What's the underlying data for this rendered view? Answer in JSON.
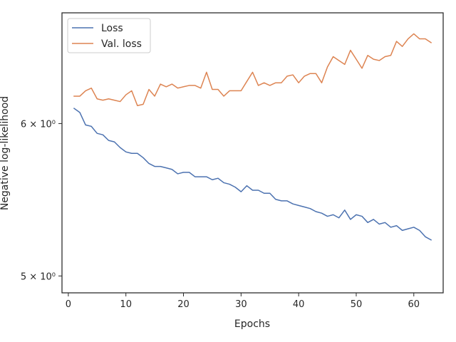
{
  "chart_data": {
    "type": "line",
    "xlabel": "Epochs",
    "ylabel": "Negative log-likelihood",
    "yscale": "log",
    "xlim": [
      -1.1,
      65.1
    ],
    "ylim": [
      4.9,
      6.85
    ],
    "xticks": [
      0,
      10,
      20,
      30,
      40,
      50,
      60
    ],
    "xtick_labels": [
      "0",
      "10",
      "20",
      "30",
      "40",
      "50",
      "60"
    ],
    "yticks": [
      5,
      6
    ],
    "ytick_labels": [
      "5 × 10⁰",
      "6 × 10⁰"
    ],
    "grid": false,
    "legend_position": "upper left",
    "x": [
      1,
      2,
      3,
      4,
      5,
      6,
      7,
      8,
      9,
      10,
      11,
      12,
      13,
      14,
      15,
      16,
      17,
      18,
      19,
      20,
      21,
      22,
      23,
      24,
      25,
      26,
      27,
      28,
      29,
      30,
      31,
      32,
      33,
      34,
      35,
      36,
      37,
      38,
      39,
      40,
      41,
      42,
      43,
      44,
      45,
      46,
      47,
      48,
      49,
      50,
      51,
      52,
      53,
      54,
      55,
      56,
      57,
      58,
      59,
      60,
      61,
      62,
      63
    ],
    "series": [
      {
        "name": "Loss",
        "color": "#4c72b0",
        "values": [
          6.11,
          6.08,
          5.99,
          5.98,
          5.93,
          5.92,
          5.88,
          5.87,
          5.83,
          5.8,
          5.79,
          5.79,
          5.76,
          5.72,
          5.7,
          5.7,
          5.69,
          5.68,
          5.65,
          5.66,
          5.66,
          5.63,
          5.63,
          5.63,
          5.61,
          5.62,
          5.59,
          5.58,
          5.56,
          5.53,
          5.57,
          5.54,
          5.54,
          5.52,
          5.52,
          5.48,
          5.47,
          5.47,
          5.45,
          5.44,
          5.43,
          5.42,
          5.4,
          5.39,
          5.37,
          5.38,
          5.36,
          5.41,
          5.35,
          5.38,
          5.37,
          5.33,
          5.35,
          5.32,
          5.33,
          5.3,
          5.31,
          5.28,
          5.29,
          5.3,
          5.28,
          5.24,
          5.22
        ]
      },
      {
        "name": "Val. loss",
        "color": "#dd8452",
        "values": [
          6.2,
          6.2,
          6.24,
          6.26,
          6.18,
          6.17,
          6.18,
          6.17,
          6.16,
          6.21,
          6.24,
          6.13,
          6.14,
          6.25,
          6.2,
          6.29,
          6.27,
          6.29,
          6.26,
          6.27,
          6.28,
          6.28,
          6.26,
          6.38,
          6.25,
          6.25,
          6.2,
          6.24,
          6.24,
          6.24,
          6.31,
          6.38,
          6.28,
          6.3,
          6.28,
          6.3,
          6.3,
          6.35,
          6.36,
          6.3,
          6.35,
          6.37,
          6.37,
          6.3,
          6.42,
          6.5,
          6.47,
          6.44,
          6.55,
          6.48,
          6.41,
          6.51,
          6.48,
          6.47,
          6.5,
          6.51,
          6.62,
          6.58,
          6.64,
          6.68,
          6.64,
          6.64,
          6.61
        ]
      }
    ]
  }
}
